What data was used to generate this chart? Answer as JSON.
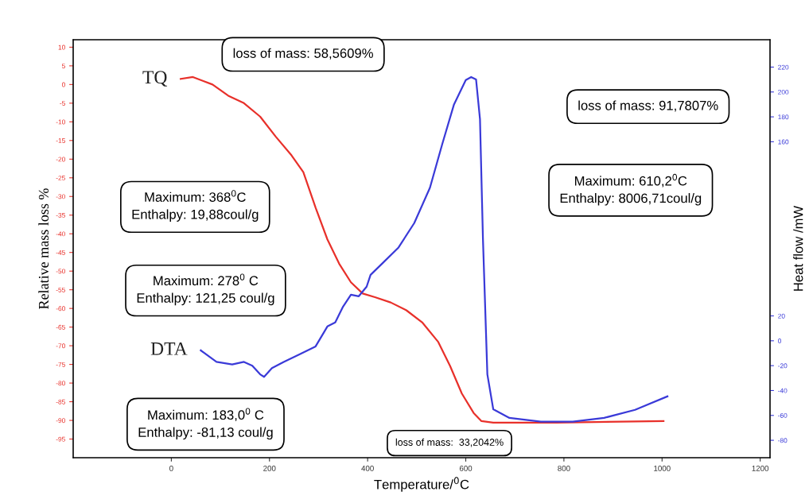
{
  "chart_data": {
    "type": "line",
    "xlabel": "Temperature/$^{0}$C",
    "ylabel": "Relative mass loss %",
    "y2label": "Heat flow /mW",
    "xlim": [
      -200,
      1220
    ],
    "xticks": [
      0,
      200,
      400,
      600,
      800,
      1000,
      1200
    ],
    "ylim": [
      -100,
      12
    ],
    "yticks": [
      -95,
      -90,
      -85,
      -80,
      -75,
      -70,
      -65,
      -60,
      -55,
      -50,
      -45,
      -40,
      -35,
      -30,
      -25,
      -20,
      -15,
      -10,
      -5,
      0,
      5,
      10
    ],
    "y2lim": [
      -94,
      242
    ],
    "y2ticks": [
      -80,
      -60,
      -40,
      -20,
      0,
      20,
      160,
      180,
      200,
      220
    ],
    "grid": false,
    "legend": false,
    "series": [
      {
        "name": "TQ",
        "color": "#e8302a",
        "x": [
          19,
          44,
          84,
          116,
          148,
          181,
          213,
          245,
          269,
          294,
          318,
          342,
          366,
          390,
          415,
          447,
          479,
          511,
          544,
          568,
          592,
          616,
          632,
          656,
          785,
          1003
        ],
        "values": [
          1.5,
          2,
          0,
          -3,
          -5,
          -8.6,
          -14,
          -19,
          -23.5,
          -33,
          -41.5,
          -48,
          -53,
          -56,
          -57,
          -58.4,
          -60.5,
          -63.7,
          -69,
          -75.4,
          -82.8,
          -88,
          -90.2,
          -90.6,
          -90.6,
          -90.2
        ]
      },
      {
        "name": "DTA",
        "color": "#3a3ad8",
        "axis": "y2",
        "x": [
          60,
          92,
          124,
          148,
          165,
          181,
          189,
          205,
          229,
          261,
          294,
          318,
          334,
          350,
          366,
          382,
          398,
          406,
          431,
          463,
          495,
          527,
          552,
          576,
          600,
          611,
          621,
          629,
          635,
          644,
          656,
          689,
          753,
          818,
          882,
          945,
          1011
        ],
        "values": [
          -7.7,
          -17,
          -19,
          -17,
          -20,
          -27,
          -29,
          -22,
          -17,
          -11,
          -4.5,
          11.5,
          14.7,
          27.5,
          37,
          35.8,
          43.5,
          53,
          62.6,
          75,
          94.6,
          123,
          158,
          190,
          209.6,
          212,
          210,
          178,
          82,
          -27,
          -55,
          -62,
          -65,
          -65,
          -62,
          -55.5,
          -44.7
        ]
      }
    ],
    "annotations": [
      "loss of mass: 58,5609%",
      "loss of mass: 91,7807%",
      "Maximum: 368$^{0}$C\nEnthalpy: 19,88coul/g",
      "Maximum: 278$^{0}$ C\nEnthalpy: 121,25 coul/g",
      "Maximum: 610,2$^{0}$C\nEnthalpy: 8006,71coul/g",
      "Maximum: 183,0$^{0}$ C\nEnthalpy: -81,13 coul/g",
      "loss of mass:  33,2042%"
    ]
  }
}
